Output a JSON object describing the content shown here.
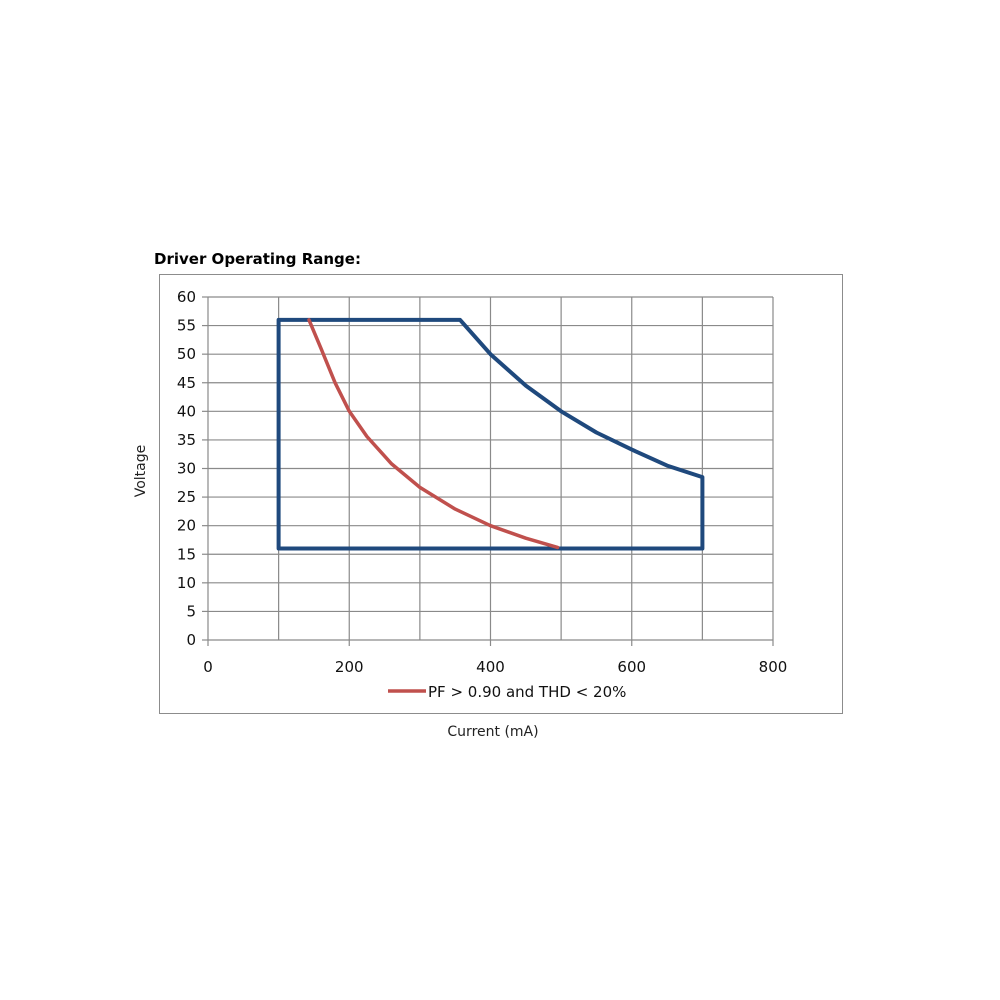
{
  "chart_data": {
    "type": "line",
    "title": "Driver Operating Range:",
    "xlabel": "Current (mA)",
    "ylabel": "Voltage",
    "xlim": [
      0,
      800
    ],
    "ylim": [
      0,
      60
    ],
    "x_ticks": [
      0,
      200,
      400,
      600,
      800
    ],
    "y_ticks": [
      0,
      5,
      10,
      15,
      20,
      25,
      30,
      35,
      40,
      45,
      50,
      55,
      60
    ],
    "grid": true,
    "legend_position": "bottom",
    "series": [
      {
        "color": "#1f497d",
        "points": [
          [
            100,
            16
          ],
          [
            100,
            56
          ],
          [
            357,
            56
          ],
          [
            400,
            50
          ],
          [
            450,
            44.5
          ],
          [
            500,
            40
          ],
          [
            550,
            36.3
          ],
          [
            600,
            33.3
          ],
          [
            650,
            30.5
          ],
          [
            700,
            28.5
          ],
          [
            700,
            16
          ],
          [
            100,
            16
          ]
        ]
      },
      {
        "name": "PF > 0.90 and THD < 20%",
        "color": "#c0504d",
        "points": [
          [
            143,
            56
          ],
          [
            160,
            51
          ],
          [
            180,
            45
          ],
          [
            200,
            40
          ],
          [
            225,
            35.6
          ],
          [
            260,
            30.8
          ],
          [
            300,
            26.7
          ],
          [
            350,
            22.9
          ],
          [
            400,
            20
          ],
          [
            450,
            17.8
          ],
          [
            495,
            16.2
          ]
        ]
      }
    ]
  }
}
